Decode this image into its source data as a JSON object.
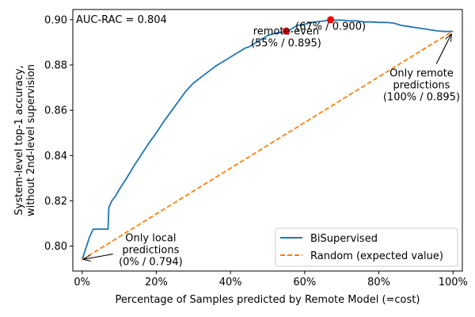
{
  "chart_data": {
    "type": "line",
    "xlabel": "Percentage of Samples predicted by Remote Model (=cost)",
    "ylabel_lines": [
      "System-level top-1 accuracy,",
      "without 2nd-level supervision"
    ],
    "xlim": [
      -2.5,
      102.5
    ],
    "ylim": [
      0.789,
      0.9045
    ],
    "xticks": [
      0,
      20,
      40,
      60,
      80,
      100
    ],
    "xtick_labels": [
      "0%",
      "20%",
      "40%",
      "60%",
      "80%",
      "100%"
    ],
    "yticks": [
      0.8,
      0.82,
      0.84,
      0.86,
      0.88,
      0.9
    ],
    "ytick_labels": [
      "0.80",
      "0.82",
      "0.84",
      "0.86",
      "0.88",
      "0.90"
    ],
    "auc_label": "AUC-RAC = 0.804",
    "series": [
      {
        "name": "BiSupervised",
        "color": "#1f77b4",
        "style": "solid",
        "x": [
          0,
          1,
          2,
          3,
          4,
          5,
          6,
          7,
          7.2,
          8,
          9,
          10,
          12,
          14,
          16,
          18,
          20,
          22,
          24,
          26,
          28,
          30,
          32,
          34,
          36,
          38,
          40,
          42,
          44,
          45,
          46,
          48,
          50,
          52,
          54,
          55,
          56,
          58,
          60,
          62,
          64,
          66,
          67,
          68,
          70,
          72,
          74,
          76,
          78,
          80,
          82,
          84,
          86,
          88,
          90,
          92,
          94,
          96,
          98,
          100
        ],
        "y": [
          0.794,
          0.799,
          0.804,
          0.8075,
          0.8075,
          0.8075,
          0.8075,
          0.8075,
          0.817,
          0.82,
          0.822,
          0.825,
          0.83,
          0.8355,
          0.8405,
          0.8455,
          0.85,
          0.855,
          0.8595,
          0.864,
          0.8685,
          0.872,
          0.8745,
          0.877,
          0.8795,
          0.8815,
          0.8835,
          0.8855,
          0.8875,
          0.888,
          0.889,
          0.891,
          0.893,
          0.894,
          0.8945,
          0.8948,
          0.8955,
          0.8975,
          0.898,
          0.8988,
          0.8992,
          0.8996,
          0.9,
          0.8998,
          0.8998,
          0.8995,
          0.8995,
          0.899,
          0.899,
          0.8988,
          0.8988,
          0.8985,
          0.8975,
          0.897,
          0.8965,
          0.896,
          0.8955,
          0.895,
          0.8948,
          0.8948
        ]
      },
      {
        "name": "Random (expected value)",
        "color": "#ff7f0e",
        "style": "dashed",
        "x": [
          0,
          100
        ],
        "y": [
          0.794,
          0.895
        ]
      }
    ],
    "markers": [
      {
        "x": 55,
        "y": 0.895,
        "color": "#ff0000"
      },
      {
        "x": 67,
        "y": 0.9,
        "color": "#ff0000"
      }
    ],
    "annotations": [
      {
        "lines": [
          "remote-even",
          "(55% / 0.895)"
        ],
        "x": 55,
        "y": 0.895,
        "arrow": false
      },
      {
        "lines": [
          "(67% / 0.900)"
        ],
        "x": 67,
        "y": 0.9,
        "arrow": false
      },
      {
        "lines": [
          "Only remote",
          "predictions",
          "(100% / 0.895)"
        ],
        "x": 100,
        "y": 0.895,
        "arrow": true
      },
      {
        "lines": [
          "Only local",
          "predictions",
          "(0% / 0.794)"
        ],
        "x": 0,
        "y": 0.794,
        "arrow": true
      }
    ],
    "legend_position": "lower-right"
  }
}
